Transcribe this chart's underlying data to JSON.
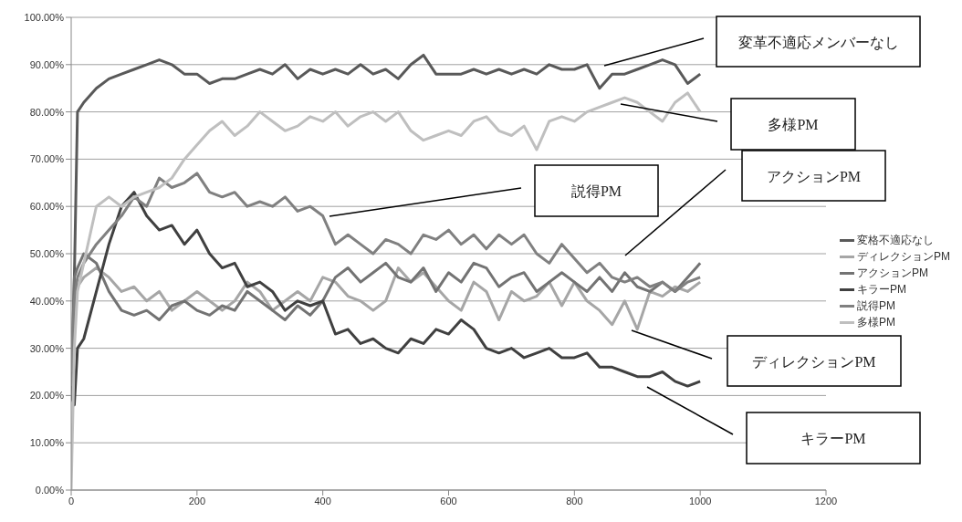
{
  "chart_data": {
    "type": "line",
    "x": [
      0,
      5,
      10,
      20,
      40,
      60,
      80,
      100,
      120,
      140,
      160,
      180,
      200,
      220,
      240,
      260,
      280,
      300,
      320,
      340,
      360,
      380,
      400,
      420,
      440,
      460,
      480,
      500,
      520,
      540,
      560,
      580,
      600,
      620,
      640,
      660,
      680,
      700,
      720,
      740,
      760,
      780,
      800,
      820,
      840,
      860,
      880,
      900,
      920,
      940,
      960,
      980,
      1000
    ],
    "series": [
      {
        "name": "変格不適応なし",
        "color": "#595959",
        "values": [
          20,
          45,
          80,
          82,
          85,
          87,
          88,
          89,
          90,
          91,
          90,
          88,
          88,
          86,
          87,
          87,
          88,
          89,
          88,
          90,
          87,
          89,
          88,
          89,
          88,
          90,
          88,
          89,
          87,
          90,
          92,
          88,
          88,
          88,
          89,
          88,
          89,
          88,
          89,
          88,
          90,
          89,
          89,
          90,
          85,
          88,
          88,
          89,
          90,
          91,
          90,
          86,
          88
        ]
      },
      {
        "name": "ディレクションPM",
        "color": "#a6a6a6",
        "values": [
          22,
          38,
          43,
          45,
          47,
          45,
          42,
          43,
          40,
          42,
          38,
          40,
          42,
          40,
          38,
          40,
          44,
          42,
          38,
          40,
          42,
          40,
          45,
          44,
          41,
          40,
          38,
          40,
          47,
          44,
          46,
          43,
          40,
          38,
          44,
          42,
          36,
          42,
          40,
          41,
          44,
          39,
          44,
          40,
          38,
          35,
          40,
          34,
          42,
          41,
          43,
          42,
          44
        ]
      },
      {
        "name": "アクションPM",
        "color": "#737373",
        "values": [
          22,
          45,
          47,
          50,
          48,
          42,
          38,
          37,
          38,
          36,
          39,
          40,
          38,
          37,
          39,
          38,
          42,
          40,
          38,
          36,
          39,
          37,
          40,
          45,
          47,
          44,
          46,
          48,
          45,
          44,
          47,
          42,
          46,
          44,
          48,
          47,
          43,
          45,
          46,
          42,
          44,
          46,
          44,
          42,
          45,
          42,
          46,
          43,
          42,
          44,
          42,
          45,
          48
        ]
      },
      {
        "name": "キラーPM",
        "color": "#404040",
        "values": [
          20,
          18,
          30,
          32,
          42,
          52,
          60,
          63,
          58,
          55,
          56,
          52,
          55,
          50,
          47,
          48,
          43,
          44,
          42,
          38,
          40,
          39,
          40,
          33,
          34,
          31,
          32,
          30,
          29,
          32,
          31,
          34,
          33,
          36,
          34,
          30,
          29,
          30,
          28,
          29,
          30,
          28,
          28,
          29,
          26,
          26,
          25,
          24,
          24,
          25,
          23,
          22,
          23
        ]
      },
      {
        "name": "説得PM",
        "color": "#808080",
        "values": [
          25,
          40,
          45,
          48,
          52,
          55,
          58,
          62,
          60,
          66,
          64,
          65,
          67,
          63,
          62,
          63,
          60,
          61,
          60,
          62,
          59,
          60,
          58,
          52,
          54,
          52,
          50,
          53,
          52,
          50,
          54,
          53,
          55,
          52,
          54,
          51,
          54,
          52,
          54,
          50,
          48,
          52,
          49,
          46,
          48,
          45,
          44,
          45,
          43,
          44,
          42,
          44,
          45
        ]
      },
      {
        "name": "多様PM",
        "color": "#bfbfbf",
        "values": [
          0,
          30,
          42,
          48,
          60,
          62,
          60,
          62,
          63,
          64,
          66,
          70,
          73,
          76,
          78,
          75,
          77,
          80,
          78,
          76,
          77,
          79,
          78,
          80,
          77,
          79,
          80,
          78,
          80,
          76,
          74,
          75,
          76,
          75,
          78,
          79,
          76,
          75,
          77,
          72,
          78,
          79,
          78,
          80,
          81,
          82,
          83,
          82,
          80,
          78,
          82,
          84,
          80
        ]
      }
    ],
    "xlim": [
      0,
      1200
    ],
    "xticks": [
      0,
      200,
      400,
      600,
      800,
      1000,
      1200
    ],
    "ylim": [
      0,
      100
    ],
    "yticks": [
      {
        "value": 0,
        "label": "0.00%"
      },
      {
        "value": 10,
        "label": "10.00%"
      },
      {
        "value": 20,
        "label": "20.00%"
      },
      {
        "value": 30,
        "label": "30.00%"
      },
      {
        "value": 40,
        "label": "40.00%"
      },
      {
        "value": 50,
        "label": "50.00%"
      },
      {
        "value": 60,
        "label": "60.00%"
      },
      {
        "value": 70,
        "label": "70.00%"
      },
      {
        "value": 80,
        "label": "80.00%"
      },
      {
        "value": 90,
        "label": "90.00%"
      },
      {
        "value": 100,
        "label": "100.00%"
      }
    ],
    "grid": "y",
    "legend": "right",
    "annotations": [
      "変革不適応メンバーなし",
      "多様PM",
      "アクションPM",
      "説得PM",
      "ディレクションPM",
      "キラーPM"
    ]
  }
}
